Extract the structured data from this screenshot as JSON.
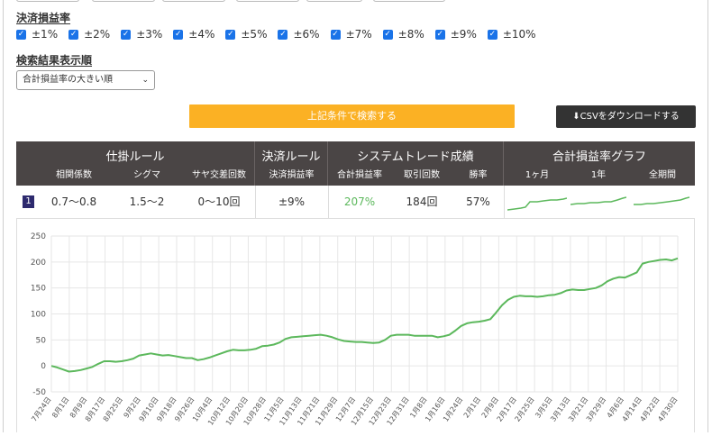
{
  "settlement_section": {
    "title": "決済損益率",
    "options": [
      "±1%",
      "±2%",
      "±3%",
      "±4%",
      "±5%",
      "±6%",
      "±7%",
      "±8%",
      "±9%",
      "±10%"
    ]
  },
  "order_section": {
    "title": "検索結果表示順",
    "selected": "合計損益率の大きい順"
  },
  "buttons": {
    "search_label": "上記条件で検索する",
    "csv_label": "CSVをダウンロードする"
  },
  "table": {
    "groups": {
      "entry_rule": "仕掛ルール",
      "exit_rule": "決済ルール",
      "system_result": "システムトレード成績",
      "graph": "合計損益率グラフ"
    },
    "headers": {
      "correlation": "相関係数",
      "sigma": "シグマ",
      "cross_count": "サヤ交差回数",
      "exit_pct": "決済損益率",
      "total_pct": "合計損益率",
      "trades": "取引回数",
      "win_rate": "勝率",
      "m1": "1ヶ月",
      "y1": "1年",
      "all": "全期間"
    },
    "row": {
      "rank": "1",
      "correlation": "0.7～0.8",
      "sigma": "1.5～2",
      "cross_count": "0～10回",
      "exit_pct": "±9%",
      "total_pct": "207%",
      "trades": "184回",
      "win_rate": "57%"
    }
  },
  "colors": {
    "accent_orange": "#fbb124",
    "header_bg": "#4a4545",
    "line_green": "#5cb85c",
    "rank_bg": "#2d2a6e"
  },
  "icons": {
    "checkbox": "check-icon",
    "download": "download-icon",
    "select": "chevron-down-icon"
  },
  "chart_data": {
    "type": "line",
    "title": "",
    "xlabel": "",
    "ylabel": "",
    "ylim": [
      -50,
      250
    ],
    "yticks": [
      -50,
      0,
      50,
      100,
      150,
      200,
      250
    ],
    "xticks": [
      "7月24日",
      "8月1日",
      "8月9日",
      "8月17日",
      "8月25日",
      "9月2日",
      "9月10日",
      "9月18日",
      "9月26日",
      "10月4日",
      "10月12日",
      "10月20日",
      "10月28日",
      "11月5日",
      "11月13日",
      "11月21日",
      "11月29日",
      "12月7日",
      "12月15日",
      "12月23日",
      "12月31日",
      "1月8日",
      "1月16日",
      "1月24日",
      "2月1日",
      "2月9日",
      "2月17日",
      "2月25日",
      "3月5日",
      "3月13日",
      "3月21日",
      "3月29日",
      "4月6日",
      "4月14日",
      "4月22日",
      "4月30日"
    ],
    "grid": true,
    "series": [
      {
        "color": "#5cb85c",
        "values": [
          0,
          -3,
          -7,
          -11,
          -10,
          -8,
          -5,
          -2,
          4,
          9,
          9,
          8,
          9,
          11,
          14,
          20,
          22,
          24,
          22,
          20,
          21,
          19,
          17,
          15,
          15,
          11,
          13,
          16,
          20,
          24,
          28,
          31,
          30,
          30,
          31,
          33,
          38,
          39,
          41,
          45,
          52,
          55,
          56,
          57,
          58,
          59,
          60,
          58,
          55,
          51,
          48,
          47,
          46,
          46,
          45,
          44,
          45,
          50,
          58,
          60,
          60,
          60,
          58,
          58,
          58,
          58,
          55,
          57,
          60,
          68,
          77,
          82,
          84,
          85,
          87,
          90,
          103,
          117,
          127,
          133,
          135,
          134,
          134,
          133,
          134,
          136,
          137,
          140,
          145,
          147,
          146,
          146,
          148,
          150,
          155,
          163,
          168,
          171,
          170,
          175,
          180,
          197,
          200,
          202,
          204,
          205,
          203,
          207
        ]
      }
    ]
  }
}
